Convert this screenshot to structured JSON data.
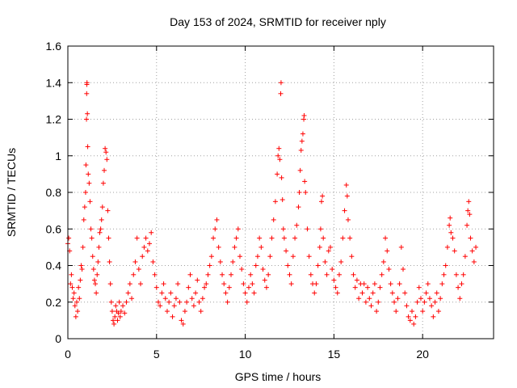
{
  "chart_data": {
    "type": "scatter",
    "title": "Day 153 of 2024, SRMTID for receiver nply",
    "xlabel": "GPS time / hours",
    "ylabel": "SRMTID / TECUs",
    "xlim": [
      0,
      24
    ],
    "ylim": [
      0,
      1.6
    ],
    "xticks": [
      0,
      5,
      10,
      15,
      20
    ],
    "xtick_labels": [
      "0",
      "5",
      "10",
      "15",
      "20"
    ],
    "yticks": [
      0,
      0.2,
      0.4,
      0.6,
      0.8,
      1.0,
      1.2,
      1.4,
      1.6
    ],
    "ytick_labels": [
      "0",
      "0.2",
      "0.4",
      "0.6",
      "0.8",
      "1",
      "1.2",
      "1.4",
      "1.6"
    ],
    "grid": true,
    "marker": "plus",
    "color": "#ff0000",
    "series": [
      {
        "name": "SRMTID",
        "points": [
          [
            0.0,
            0.52
          ],
          [
            0.05,
            0.55
          ],
          [
            0.1,
            0.48
          ],
          [
            0.15,
            0.3
          ],
          [
            0.2,
            0.35
          ],
          [
            0.25,
            0.28
          ],
          [
            0.3,
            0.22
          ],
          [
            0.35,
            0.25
          ],
          [
            0.4,
            0.18
          ],
          [
            0.45,
            0.12
          ],
          [
            0.5,
            0.2
          ],
          [
            0.55,
            0.15
          ],
          [
            0.6,
            0.28
          ],
          [
            0.65,
            0.22
          ],
          [
            0.7,
            0.32
          ],
          [
            0.75,
            0.4
          ],
          [
            0.8,
            0.38
          ],
          [
            0.85,
            0.5
          ],
          [
            0.9,
            0.65
          ],
          [
            0.95,
            0.72
          ],
          [
            1.0,
            0.8
          ],
          [
            1.02,
            0.95
          ],
          [
            1.05,
            1.2
          ],
          [
            1.06,
            1.34
          ],
          [
            1.07,
            1.39
          ],
          [
            1.08,
            1.4
          ],
          [
            1.1,
            1.23
          ],
          [
            1.12,
            1.05
          ],
          [
            1.15,
            0.9
          ],
          [
            1.2,
            0.85
          ],
          [
            1.25,
            0.75
          ],
          [
            1.3,
            0.6
          ],
          [
            1.35,
            0.55
          ],
          [
            1.4,
            0.45
          ],
          [
            1.45,
            0.38
          ],
          [
            1.5,
            0.32
          ],
          [
            1.55,
            0.3
          ],
          [
            1.6,
            0.25
          ],
          [
            1.65,
            0.35
          ],
          [
            1.7,
            0.42
          ],
          [
            1.75,
            0.5
          ],
          [
            1.8,
            0.58
          ],
          [
            1.85,
            0.6
          ],
          [
            1.9,
            0.65
          ],
          [
            1.95,
            0.72
          ],
          [
            2.0,
            0.85
          ],
          [
            2.05,
            0.92
          ],
          [
            2.1,
            1.04
          ],
          [
            2.15,
            1.02
          ],
          [
            2.2,
            0.98
          ],
          [
            2.25,
            0.7
          ],
          [
            2.3,
            0.55
          ],
          [
            2.35,
            0.42
          ],
          [
            2.4,
            0.3
          ],
          [
            2.45,
            0.2
          ],
          [
            2.5,
            0.15
          ],
          [
            2.55,
            0.1
          ],
          [
            2.6,
            0.08
          ],
          [
            2.65,
            0.12
          ],
          [
            2.7,
            0.18
          ],
          [
            2.75,
            0.15
          ],
          [
            2.8,
            0.1
          ],
          [
            2.85,
            0.14
          ],
          [
            2.9,
            0.2
          ],
          [
            2.95,
            0.12
          ],
          [
            3.0,
            0.15
          ],
          [
            3.1,
            0.18
          ],
          [
            3.2,
            0.14
          ],
          [
            3.3,
            0.2
          ],
          [
            3.4,
            0.25
          ],
          [
            3.5,
            0.3
          ],
          [
            3.6,
            0.22
          ],
          [
            3.7,
            0.35
          ],
          [
            3.8,
            0.42
          ],
          [
            3.9,
            0.55
          ],
          [
            4.0,
            0.38
          ],
          [
            4.1,
            0.3
          ],
          [
            4.2,
            0.45
          ],
          [
            4.3,
            0.5
          ],
          [
            4.4,
            0.55
          ],
          [
            4.5,
            0.48
          ],
          [
            4.6,
            0.52
          ],
          [
            4.7,
            0.58
          ],
          [
            4.8,
            0.42
          ],
          [
            4.9,
            0.35
          ],
          [
            5.0,
            0.28
          ],
          [
            5.1,
            0.2
          ],
          [
            5.2,
            0.18
          ],
          [
            5.3,
            0.25
          ],
          [
            5.4,
            0.3
          ],
          [
            5.5,
            0.22
          ],
          [
            5.6,
            0.15
          ],
          [
            5.7,
            0.2
          ],
          [
            5.8,
            0.25
          ],
          [
            5.9,
            0.12
          ],
          [
            6.0,
            0.18
          ],
          [
            6.1,
            0.22
          ],
          [
            6.2,
            0.3
          ],
          [
            6.3,
            0.2
          ],
          [
            6.4,
            0.1
          ],
          [
            6.5,
            0.08
          ],
          [
            6.6,
            0.15
          ],
          [
            6.7,
            0.2
          ],
          [
            6.8,
            0.28
          ],
          [
            6.9,
            0.35
          ],
          [
            7.0,
            0.22
          ],
          [
            7.1,
            0.18
          ],
          [
            7.2,
            0.25
          ],
          [
            7.3,
            0.32
          ],
          [
            7.4,
            0.2
          ],
          [
            7.5,
            0.15
          ],
          [
            7.6,
            0.22
          ],
          [
            7.7,
            0.28
          ],
          [
            7.8,
            0.3
          ],
          [
            7.9,
            0.35
          ],
          [
            8.0,
            0.4
          ],
          [
            8.1,
            0.45
          ],
          [
            8.2,
            0.55
          ],
          [
            8.3,
            0.6
          ],
          [
            8.4,
            0.65
          ],
          [
            8.5,
            0.5
          ],
          [
            8.6,
            0.42
          ],
          [
            8.7,
            0.35
          ],
          [
            8.8,
            0.3
          ],
          [
            8.9,
            0.25
          ],
          [
            9.0,
            0.2
          ],
          [
            9.1,
            0.28
          ],
          [
            9.2,
            0.35
          ],
          [
            9.3,
            0.42
          ],
          [
            9.4,
            0.5
          ],
          [
            9.5,
            0.55
          ],
          [
            9.6,
            0.6
          ],
          [
            9.7,
            0.45
          ],
          [
            9.8,
            0.38
          ],
          [
            9.9,
            0.3
          ],
          [
            10.0,
            0.25
          ],
          [
            10.1,
            0.2
          ],
          [
            10.2,
            0.28
          ],
          [
            10.3,
            0.35
          ],
          [
            10.4,
            0.3
          ],
          [
            10.5,
            0.25
          ],
          [
            10.6,
            0.4
          ],
          [
            10.7,
            0.45
          ],
          [
            10.8,
            0.55
          ],
          [
            10.9,
            0.5
          ],
          [
            11.0,
            0.38
          ],
          [
            11.1,
            0.32
          ],
          [
            11.2,
            0.28
          ],
          [
            11.3,
            0.35
          ],
          [
            11.4,
            0.45
          ],
          [
            11.5,
            0.55
          ],
          [
            11.6,
            0.65
          ],
          [
            11.7,
            0.75
          ],
          [
            11.8,
            0.9
          ],
          [
            11.85,
            1.0
          ],
          [
            11.9,
            1.04
          ],
          [
            11.95,
            0.98
          ],
          [
            12.0,
            1.34
          ],
          [
            12.02,
            1.4
          ],
          [
            12.05,
            0.88
          ],
          [
            12.1,
            0.76
          ],
          [
            12.15,
            0.6
          ],
          [
            12.2,
            0.55
          ],
          [
            12.3,
            0.48
          ],
          [
            12.4,
            0.4
          ],
          [
            12.5,
            0.35
          ],
          [
            12.6,
            0.3
          ],
          [
            12.7,
            0.45
          ],
          [
            12.8,
            0.55
          ],
          [
            12.9,
            0.62
          ],
          [
            13.0,
            0.72
          ],
          [
            13.05,
            0.8
          ],
          [
            13.1,
            0.92
          ],
          [
            13.15,
            1.03
          ],
          [
            13.2,
            1.08
          ],
          [
            13.25,
            1.12
          ],
          [
            13.3,
            1.2
          ],
          [
            13.32,
            1.22
          ],
          [
            13.35,
            0.86
          ],
          [
            13.4,
            0.8
          ],
          [
            13.5,
            0.6
          ],
          [
            13.6,
            0.45
          ],
          [
            13.7,
            0.35
          ],
          [
            13.8,
            0.3
          ],
          [
            13.9,
            0.25
          ],
          [
            14.0,
            0.3
          ],
          [
            14.1,
            0.4
          ],
          [
            14.2,
            0.5
          ],
          [
            14.25,
            0.6
          ],
          [
            14.3,
            0.75
          ],
          [
            14.35,
            0.78
          ],
          [
            14.4,
            0.55
          ],
          [
            14.5,
            0.42
          ],
          [
            14.6,
            0.35
          ],
          [
            14.7,
            0.48
          ],
          [
            14.8,
            0.5
          ],
          [
            14.9,
            0.38
          ],
          [
            15.0,
            0.32
          ],
          [
            15.1,
            0.28
          ],
          [
            15.2,
            0.25
          ],
          [
            15.3,
            0.35
          ],
          [
            15.4,
            0.42
          ],
          [
            15.5,
            0.55
          ],
          [
            15.6,
            0.7
          ],
          [
            15.7,
            0.84
          ],
          [
            15.75,
            0.78
          ],
          [
            15.8,
            0.65
          ],
          [
            15.9,
            0.55
          ],
          [
            16.0,
            0.45
          ],
          [
            16.1,
            0.35
          ],
          [
            16.2,
            0.28
          ],
          [
            16.3,
            0.32
          ],
          [
            16.4,
            0.22
          ],
          [
            16.5,
            0.3
          ],
          [
            16.6,
            0.25
          ],
          [
            16.7,
            0.3
          ],
          [
            16.8,
            0.2
          ],
          [
            16.9,
            0.28
          ],
          [
            17.0,
            0.22
          ],
          [
            17.1,
            0.18
          ],
          [
            17.2,
            0.25
          ],
          [
            17.3,
            0.3
          ],
          [
            17.4,
            0.15
          ],
          [
            17.5,
            0.2
          ],
          [
            17.6,
            0.28
          ],
          [
            17.7,
            0.35
          ],
          [
            17.8,
            0.42
          ],
          [
            17.9,
            0.55
          ],
          [
            18.0,
            0.48
          ],
          [
            18.1,
            0.38
          ],
          [
            18.2,
            0.3
          ],
          [
            18.3,
            0.25
          ],
          [
            18.4,
            0.2
          ],
          [
            18.5,
            0.15
          ],
          [
            18.6,
            0.22
          ],
          [
            18.7,
            0.3
          ],
          [
            18.8,
            0.5
          ],
          [
            18.9,
            0.38
          ],
          [
            19.0,
            0.25
          ],
          [
            19.1,
            0.18
          ],
          [
            19.2,
            0.12
          ],
          [
            19.3,
            0.1
          ],
          [
            19.4,
            0.15
          ],
          [
            19.5,
            0.08
          ],
          [
            19.6,
            0.12
          ],
          [
            19.7,
            0.2
          ],
          [
            19.8,
            0.28
          ],
          [
            19.9,
            0.22
          ],
          [
            20.0,
            0.15
          ],
          [
            20.1,
            0.2
          ],
          [
            20.2,
            0.25
          ],
          [
            20.3,
            0.3
          ],
          [
            20.4,
            0.22
          ],
          [
            20.5,
            0.18
          ],
          [
            20.6,
            0.12
          ],
          [
            20.7,
            0.2
          ],
          [
            20.8,
            0.25
          ],
          [
            20.9,
            0.15
          ],
          [
            21.0,
            0.22
          ],
          [
            21.1,
            0.3
          ],
          [
            21.2,
            0.35
          ],
          [
            21.3,
            0.4
          ],
          [
            21.4,
            0.5
          ],
          [
            21.5,
            0.62
          ],
          [
            21.55,
            0.66
          ],
          [
            21.6,
            0.58
          ],
          [
            21.7,
            0.55
          ],
          [
            21.8,
            0.48
          ],
          [
            21.9,
            0.35
          ],
          [
            22.0,
            0.28
          ],
          [
            22.1,
            0.22
          ],
          [
            22.2,
            0.3
          ],
          [
            22.3,
            0.35
          ],
          [
            22.4,
            0.45
          ],
          [
            22.5,
            0.62
          ],
          [
            22.55,
            0.7
          ],
          [
            22.6,
            0.75
          ],
          [
            22.65,
            0.68
          ],
          [
            22.7,
            0.55
          ],
          [
            22.8,
            0.48
          ],
          [
            22.9,
            0.42
          ],
          [
            23.0,
            0.5
          ]
        ]
      }
    ]
  }
}
